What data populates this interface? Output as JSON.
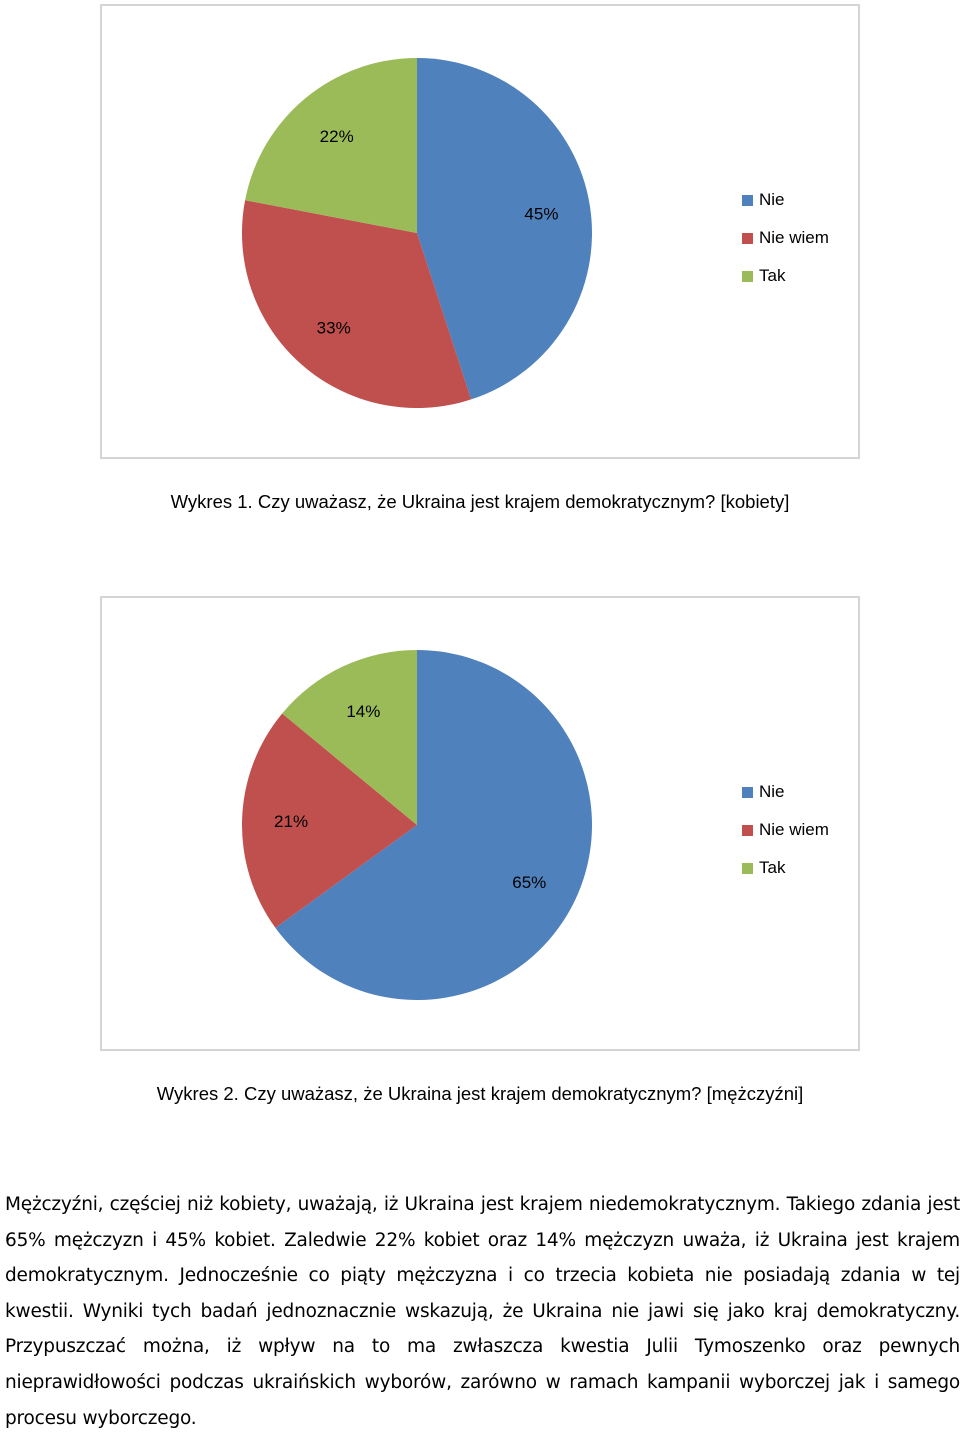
{
  "colors": {
    "Nie": "#4f81bd",
    "Nie wiem": "#c0504d",
    "Tak": "#9bbb59"
  },
  "chart_data": [
    {
      "type": "pie",
      "categories": [
        "Nie",
        "Nie wiem",
        "Tak"
      ],
      "values": [
        45,
        33,
        22
      ],
      "data_labels": [
        "45%",
        "33%",
        "22%"
      ],
      "legend_placement": "right",
      "title": "Wykres 1. Czy uważasz, że Ukraina jest krajem demokratycznym? [kobiety]"
    },
    {
      "type": "pie",
      "categories": [
        "Nie",
        "Nie wiem",
        "Tak"
      ],
      "values": [
        65,
        21,
        14
      ],
      "data_labels": [
        "65%",
        "21%",
        "14%"
      ],
      "legend_placement": "right",
      "title": "Wykres 2. Czy uważasz, że Ukraina jest krajem demokratycznym? [mężczyźni]"
    }
  ],
  "paragraph": "Mężczyźni, częściej niż kobiety, uważają, iż Ukraina jest krajem niedemokratycznym. Takiego zdania jest 65% mężczyzn i 45% kobiet. Zaledwie 22% kobiet oraz 14% mężczyzn uważa, iż Ukraina jest krajem demokratycznym. Jednocześnie co piąty mężczyzna i co trzecia kobieta nie posiadają zdania w tej kwestii. Wyniki tych badań jednoznacznie wskazują, że Ukraina nie jawi się jako kraj demokratyczny. Przypuszczać można, iż wpływ na to ma zwłaszcza kwestia Julii Tymoszenko oraz pewnych nieprawidłowości podczas ukraińskich wyborów, zarówno w ramach kampanii wyborczej jak i samego procesu wyborczego."
}
